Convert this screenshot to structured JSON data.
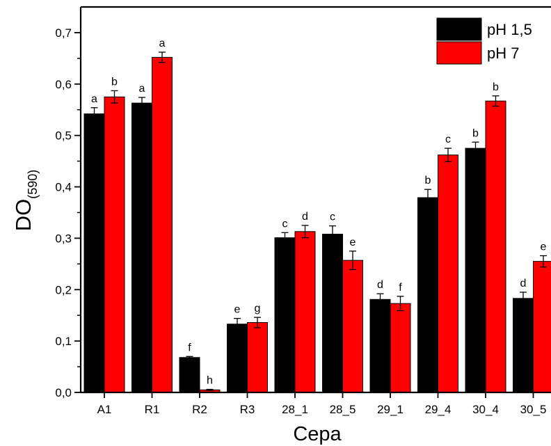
{
  "chart_data": {
    "type": "bar",
    "categories": [
      "A1",
      "R1",
      "R2",
      "R3",
      "28_1",
      "28_5",
      "29_1",
      "29_4",
      "30_4",
      "30_5"
    ],
    "series": [
      {
        "name": "pH 1,5",
        "color": "#000000",
        "values": [
          0.542,
          0.563,
          0.068,
          0.133,
          0.301,
          0.308,
          0.181,
          0.379,
          0.475,
          0.183
        ],
        "errors": [
          0.012,
          0.011,
          0.002,
          0.011,
          0.01,
          0.016,
          0.011,
          0.016,
          0.012,
          0.012
        ],
        "labels": [
          "a",
          "a",
          "f",
          "e",
          "c",
          "c",
          "d",
          "b",
          "b",
          "d"
        ]
      },
      {
        "name": "pH 7",
        "color": "#ff0000",
        "values": [
          0.575,
          0.652,
          0.005,
          0.136,
          0.313,
          0.257,
          0.173,
          0.462,
          0.567,
          0.255
        ],
        "errors": [
          0.012,
          0.01,
          0.001,
          0.01,
          0.012,
          0.018,
          0.014,
          0.013,
          0.01,
          0.011
        ],
        "labels": [
          "b",
          "a",
          "h",
          "g",
          "d",
          "e",
          "f",
          "c",
          "b",
          "e"
        ]
      }
    ],
    "xlabel": "Cepa",
    "ylabel": "DO",
    "ylabel_subscript": "(590)",
    "ylim": [
      0,
      0.75
    ],
    "yticks": [
      "0,0",
      "0,1",
      "0,2",
      "0,3",
      "0,4",
      "0,5",
      "0,6",
      "0,7"
    ],
    "ytick_values": [
      0,
      0.1,
      0.2,
      0.3,
      0.4,
      0.5,
      0.6,
      0.7
    ],
    "legend_position": "top-right",
    "grid": false
  }
}
